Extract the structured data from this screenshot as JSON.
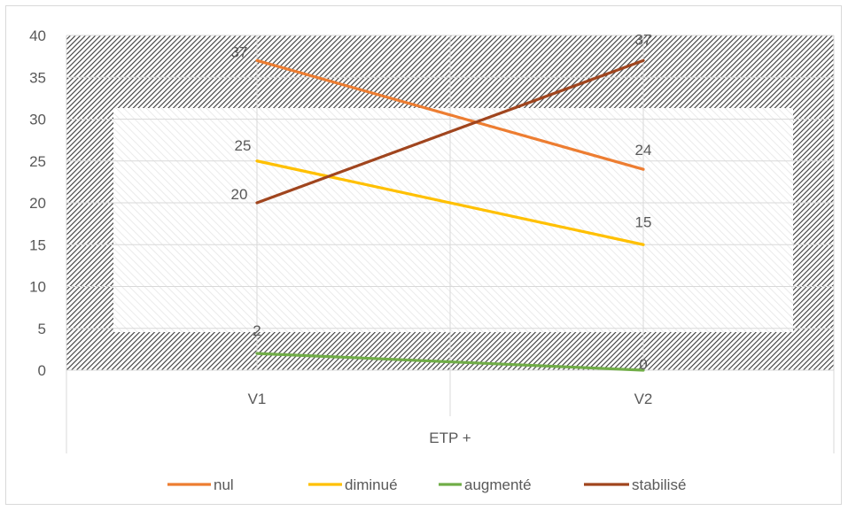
{
  "chart_data": {
    "type": "line",
    "categories": [
      "V1",
      "V2"
    ],
    "xlabel": "ETP +",
    "ylabel": "",
    "ylim": [
      0,
      40
    ],
    "yticks": [
      0,
      5,
      10,
      15,
      20,
      25,
      30,
      35,
      40
    ],
    "grid": true,
    "legend_position": "bottom",
    "series": [
      {
        "name": "nul",
        "values": [
          37,
          24
        ],
        "color": "#ED7D31"
      },
      {
        "name": "diminué",
        "values": [
          25,
          15
        ],
        "color": "#FFC000"
      },
      {
        "name": "augmenté",
        "values": [
          2,
          0
        ],
        "color": "#70AD47"
      },
      {
        "name": "stabilisé",
        "values": [
          20,
          37
        ],
        "color": "#A0451E"
      }
    ]
  }
}
